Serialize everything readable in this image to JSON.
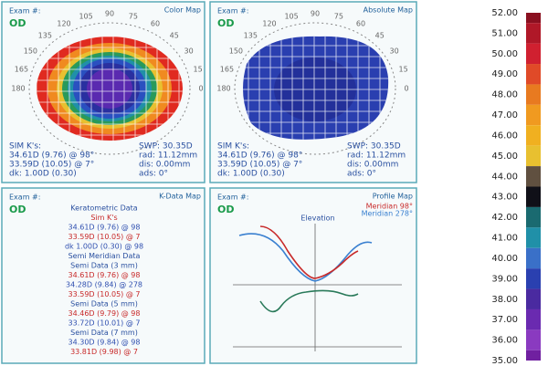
{
  "panels": [
    {
      "title": "Color Map",
      "exam": "Exam #:",
      "eye": "OD",
      "sim_label": "SIM K's:",
      "k1": "34.61D (9.76) @ 98°",
      "k2": "33.59D (10.05) @ 7°",
      "dk": "dk: 1.00D (0.30)",
      "swp": "SWP: 30.35D",
      "rad": "rad: 11.12mm",
      "dis": "dis: 0.00mm",
      "ads": "ads: 0°"
    },
    {
      "title": "Absolute Map",
      "exam": "Exam #:",
      "eye": "OD",
      "sim_label": "SIM K's:",
      "k1": "34.61D (9.76) @ 98°",
      "k2": "33.59D (10.05) @ 7°",
      "dk": "dk: 1.00D (0.30)",
      "swp": "SWP: 30.35D",
      "rad": "rad: 11.12mm",
      "dis": "dis: 0.00mm",
      "ads": "ads: 0°"
    },
    {
      "title": "K-Data Map",
      "exam": "Exam #:",
      "eye": "OD",
      "lines": [
        "Keratometric Data",
        "Sim K's",
        "34.61D (9.76) @ 98",
        "33.59D (10.05) @ 7",
        "dk 1.00D (0.30) @ 98",
        "Semi Meridian Data",
        "Semi Data (3 mm)",
        "34.61D (9.76) @ 98",
        "34.28D (9.84) @ 278",
        "33.59D (10.05) @ 7",
        "Semi Data (5 mm)",
        "34.46D (9.79) @ 98",
        "33.72D (10.01) @ 7",
        "Semi Data (7 mm)",
        "34.30D (9.84) @ 98",
        "33.81D (9.98) @ 7"
      ]
    },
    {
      "title": "Profile Map",
      "exam": "Exam #:",
      "eye": "OD",
      "legend": [
        "Meridian 98°",
        "Meridian 278°"
      ],
      "axis_title": "Elevation"
    }
  ],
  "angles": [
    0,
    15,
    30,
    45,
    60,
    75,
    90,
    105,
    120,
    135,
    150,
    165,
    180
  ],
  "scale": {
    "labels": [
      "52.00",
      "51.00",
      "50.00",
      "49.00",
      "48.00",
      "47.00",
      "46.00",
      "45.00",
      "44.00",
      "43.00",
      "42.00",
      "41.00",
      "40.00",
      "39.00",
      "38.00",
      "37.00",
      "36.00",
      "35.00"
    ],
    "colors": [
      "#8a1020",
      "#b01828",
      "#d02030",
      "#e04a28",
      "#e87a20",
      "#f09a20",
      "#f0b020",
      "#e8c030",
      "#605040",
      "#101018",
      "#1a6a70",
      "#2090a8",
      "#3a70c8",
      "#2a40b0",
      "#4a2aa0",
      "#6a2ab0",
      "#8a3ac0",
      "#7020a0"
    ]
  }
}
